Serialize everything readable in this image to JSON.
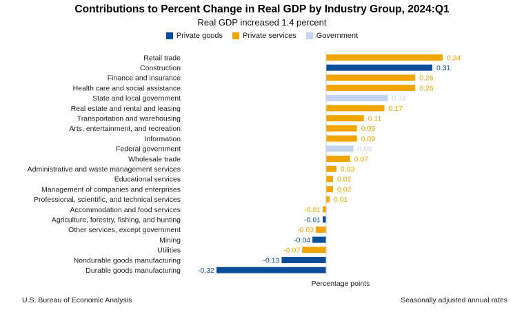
{
  "chart_data": {
    "type": "bar",
    "orientation": "horizontal",
    "title": "Contributions to Percent Change in Real GDP by Industry Group, 2024:Q1",
    "subtitle": "Real GDP increased 1.4 percent",
    "xlabel": "Percentage points",
    "xlim": [
      -0.32,
      0.34
    ],
    "grid": false,
    "legend_position": "top",
    "groups": [
      {
        "name": "Private goods",
        "color": "#0b4f9c"
      },
      {
        "name": "Private services",
        "color": "#f0a500"
      },
      {
        "name": "Government",
        "color": "#c3d5ee"
      }
    ],
    "categories": [
      "Retail trade",
      "Construction",
      "Finance and insurance",
      "Health care and social assistance",
      "State and local government",
      "Real estate and rental and leasing",
      "Transportation and warehousing",
      "Arts, entertainment, and recreation",
      "Information",
      "Federal government",
      "Wholesale trade",
      "Administrative and waste management services",
      "Educational services",
      "Management of companies and enterprises",
      "Professional, scientific, and technical services",
      "Accommodation and food services",
      "Agriculture, forestry, fishing, and hunting",
      "Other services, except government",
      "Mining",
      "Utilities",
      "Nondurable goods manufacturing",
      "Durable goods manufacturing"
    ],
    "values": [
      0.34,
      0.31,
      0.26,
      0.26,
      0.18,
      0.17,
      0.11,
      0.09,
      0.09,
      0.08,
      0.07,
      0.03,
      0.02,
      0.02,
      0.01,
      -0.01,
      -0.01,
      -0.03,
      -0.04,
      -0.07,
      -0.13,
      -0.32
    ],
    "value_labels": [
      "0.34",
      "0.31",
      "0.26",
      "0.26",
      "0.18",
      "0.17",
      "0.11",
      "0.09",
      "0.09",
      "0.08",
      "0.07",
      "0.03",
      "0.02",
      "0.02",
      "0.01",
      "-0.01",
      "-0.01",
      "-0.03",
      "-0.04",
      "-0.07",
      "-0.13",
      "-0.32"
    ],
    "bar_groups": [
      "Private services",
      "Private goods",
      "Private services",
      "Private services",
      "Government",
      "Private services",
      "Private services",
      "Private services",
      "Private services",
      "Government",
      "Private services",
      "Private services",
      "Private services",
      "Private services",
      "Private services",
      "Private services",
      "Private goods",
      "Private services",
      "Private goods",
      "Private services",
      "Private goods",
      "Private goods"
    ]
  },
  "footer": {
    "source": "U.S. Bureau of Economic Analysis",
    "note": "Seasonally adjusted annual rates"
  }
}
